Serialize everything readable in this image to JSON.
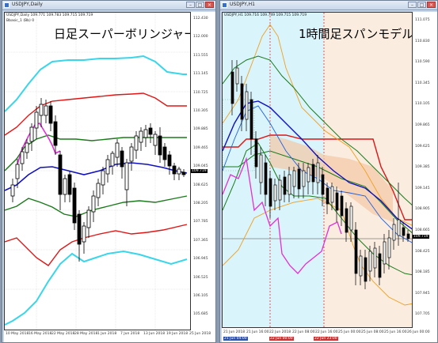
{
  "left_window": {
    "title": "USDJPY,Daily",
    "symbol_line": "USDJPY,Daily  109.771 109.783 109.715 109.719",
    "indicator_line": "Bbasic_1 (Bb) 0",
    "overlay_title": "日足スーパーボリンジャー",
    "price_tag": "109.719",
    "y_labels": [
      "112.430",
      "112.000",
      "111.555",
      "111.145",
      "110.725",
      "110.305",
      "109.885",
      "109.465",
      "109.045",
      "108.625",
      "108.205",
      "107.785",
      "107.365",
      "106.945",
      "106.525",
      "106.105",
      "105.685"
    ],
    "x_labels": [
      "10 May 2018",
      "16 May 2018",
      "22 May 2018",
      "28 May 2018",
      "1 Jun 2018",
      "7 Jun 2018",
      "13 Jun 2018",
      "19 Jun 2018",
      "25 Jun 2018"
    ]
  },
  "right_window": {
    "title": "USDJPY,H1",
    "symbol_line": "USDJPY,H1  109.716 109.749 109.715 109.719",
    "overlay_title": "1時間足スパンモデル",
    "price_tag": "109.719",
    "y_labels": [
      "111.075",
      "110.830",
      "110.590",
      "110.345",
      "110.105",
      "109.865",
      "109.625",
      "109.385",
      "109.145",
      "108.905",
      "108.665",
      "108.425",
      "108.185",
      "107.945",
      "107.705"
    ],
    "x_labels": [
      "21 Jun 2018",
      "21 Jun 16:00",
      "22 Jun 2018",
      "22 Jun 08:00",
      "22 Jun 16:00",
      "25 Jun 00:00",
      "25 Jun 08:00",
      "25 Jun 16:00",
      "26 Jun 00:00"
    ],
    "highlight_labels": [
      "21 Jun 04:00",
      "22 Jun 00:00",
      "22 Jun 23:00"
    ]
  },
  "colors": {
    "upper3": "#39d6ea",
    "upper2": "#e01515",
    "upper1": "#1a7a1a",
    "middle": "#1010c0",
    "lagging": "#e030d8",
    "span_a": "#e01515",
    "span_b": "#1a7a1a",
    "orange": "#f0a020",
    "blue2": "#2060e0"
  }
}
